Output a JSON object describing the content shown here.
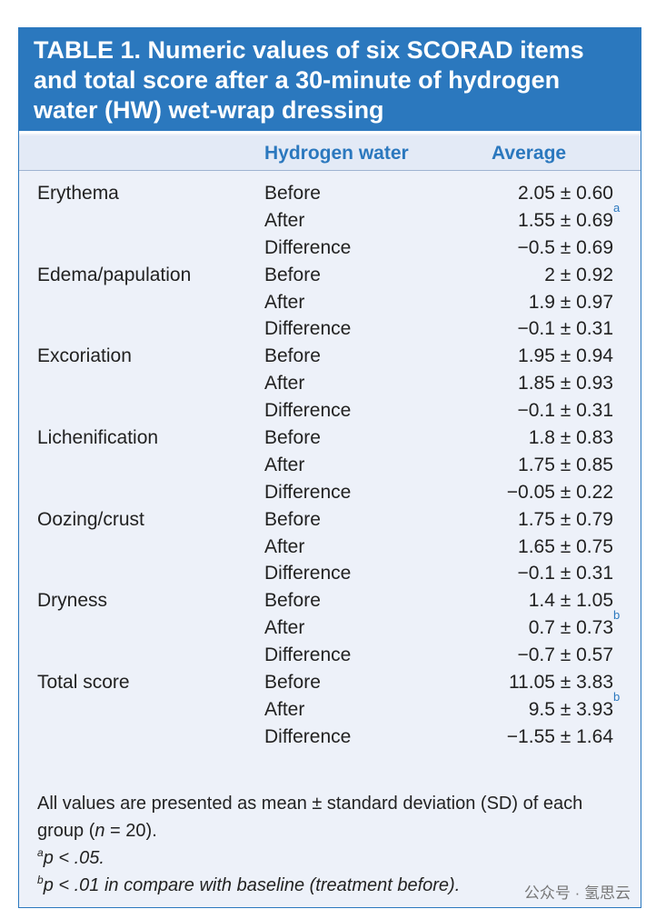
{
  "title": "TABLE 1.  Numeric values of six SCORAD items and total score after a 30-minute of hydrogen water (HW) wet-wrap dressing",
  "header": {
    "group": "Hydrogen water",
    "value": "Average"
  },
  "items": [
    {
      "name": "Erythema",
      "rows": [
        {
          "time": "Before",
          "value": "2.05 ± 0.60"
        },
        {
          "time": "After",
          "value": "1.55 ± 0.69",
          "mark": "a"
        },
        {
          "time": "Difference",
          "value": "−0.5 ± 0.69"
        }
      ]
    },
    {
      "name": "Edema/papulation",
      "rows": [
        {
          "time": "Before",
          "value": "2 ± 0.92"
        },
        {
          "time": "After",
          "value": "1.9 ± 0.97"
        },
        {
          "time": "Difference",
          "value": "−0.1 ± 0.31"
        }
      ]
    },
    {
      "name": "Excoriation",
      "rows": [
        {
          "time": "Before",
          "value": "1.95 ± 0.94"
        },
        {
          "time": "After",
          "value": "1.85 ± 0.93"
        },
        {
          "time": "Difference",
          "value": "−0.1 ± 0.31"
        }
      ]
    },
    {
      "name": "Lichenification",
      "rows": [
        {
          "time": "Before",
          "value": "1.8 ± 0.83"
        },
        {
          "time": "After",
          "value": "1.75 ± 0.85"
        },
        {
          "time": "Difference",
          "value": "−0.05 ± 0.22"
        }
      ]
    },
    {
      "name": "Oozing/crust",
      "rows": [
        {
          "time": "Before",
          "value": "1.75 ± 0.79"
        },
        {
          "time": "After",
          "value": "1.65 ± 0.75"
        },
        {
          "time": "Difference",
          "value": "−0.1 ± 0.31"
        }
      ]
    },
    {
      "name": "Dryness",
      "rows": [
        {
          "time": "Before",
          "value": "1.4 ± 1.05"
        },
        {
          "time": "After",
          "value": "0.7 ± 0.73",
          "mark": "b"
        },
        {
          "time": "Difference",
          "value": "−0.7 ± 0.57"
        }
      ]
    },
    {
      "name": "Total score",
      "rows": [
        {
          "time": "Before",
          "value": "11.05 ± 3.83"
        },
        {
          "time": "After",
          "value": "9.5 ± 3.93",
          "mark": "b"
        },
        {
          "time": "Difference",
          "value": "−1.55 ± 1.64"
        }
      ]
    }
  ],
  "note": [
    "All values are presented as mean ± standard deviation (SD) of each group (",
    "n",
    " = 20)."
  ],
  "footnotes": [
    {
      "mark": "a",
      "text": "p < .05."
    },
    {
      "mark": "b",
      "text": "p < .01 in compare with baseline (treatment before)."
    }
  ],
  "watermark": "公众号 · 氢思云"
}
